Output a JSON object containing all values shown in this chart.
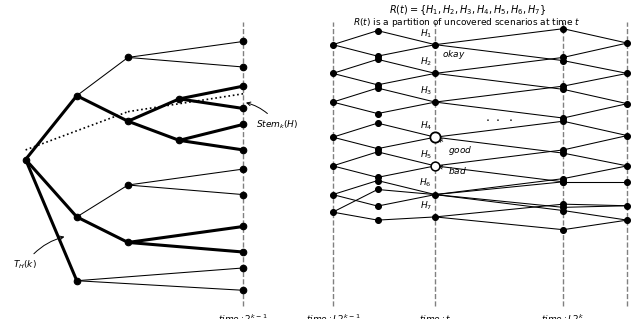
{
  "title_right_1": "$R(t) = \\{H_1, H_2, H_3, H_4, H_5, H_6, H_7\\}$",
  "title_right_2": "$R(t)$ is a partition of uncovered scenarios at time $t$",
  "label_stem": "$Stem_k(H)$",
  "label_TH": "$T_H(k)$",
  "label_time_left": "$time: 2^{k-1}$",
  "label_time_L2k1": "$time: L2^{k-1}$",
  "label_time_t": "$time: t$",
  "label_time_L2k": "$time: L2^k$",
  "label_okay": "$okay$",
  "label_good": "$good$",
  "label_bad": "$bad$",
  "bg_color": "#ffffff"
}
